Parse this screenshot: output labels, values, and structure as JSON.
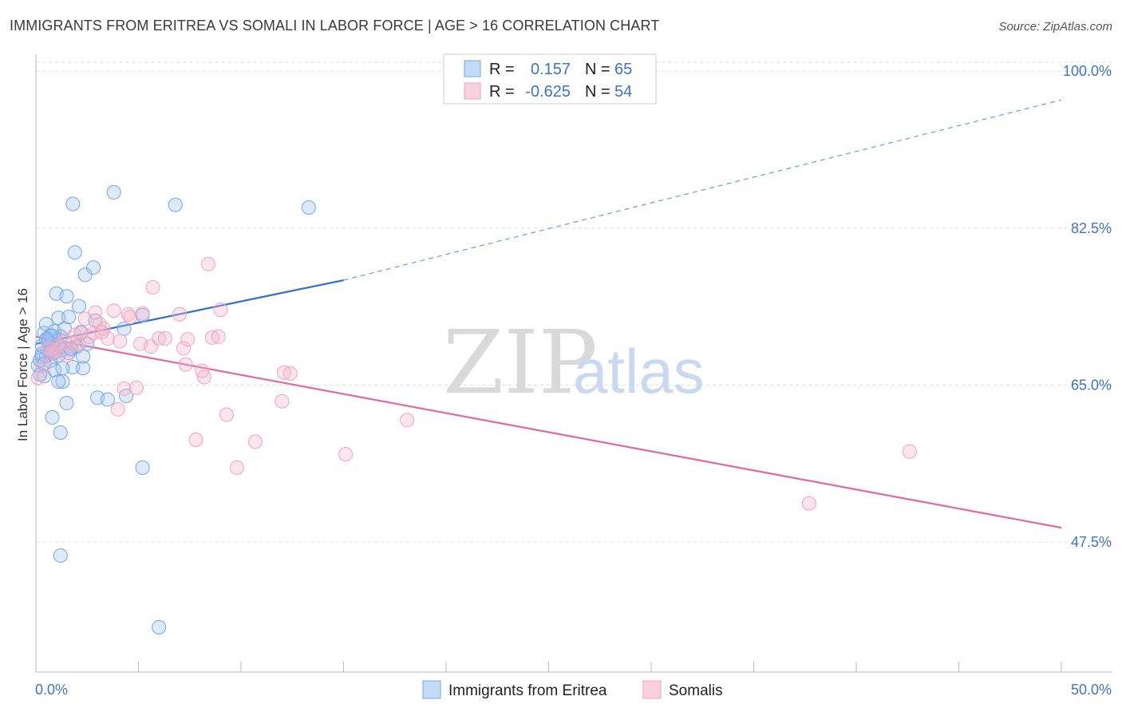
{
  "header": {
    "title": "IMMIGRANTS FROM ERITREA VS SOMALI IN LABOR FORCE | AGE > 16 CORRELATION CHART",
    "source": "Source: ZipAtlas.com"
  },
  "watermark": {
    "zip": "ZIP",
    "atlas": "atlas"
  },
  "legend": {
    "rows": [
      {
        "r_label": "R =",
        "r_value": "0.157",
        "n_label": "N =",
        "n_value": "65",
        "color": "#6fa8e8"
      },
      {
        "r_label": "R =",
        "r_value": "-0.625",
        "n_label": "N =",
        "n_value": "54",
        "color": "#f2a3bd"
      }
    ]
  },
  "bottom_legend": {
    "items": [
      {
        "label": "Immigrants from Eritrea",
        "color": "#6fa8e8"
      },
      {
        "label": "Somalis",
        "color": "#f2a3bd"
      }
    ]
  },
  "chart_data": {
    "type": "scatter",
    "title": "IMMIGRANTS FROM ERITREA VS SOMALI IN LABOR FORCE | AGE > 16 CORRELATION CHART",
    "xlabel": "",
    "ylabel": "In Labor Force | Age > 16",
    "xlim": [
      0,
      50
    ],
    "ylim": [
      33,
      101
    ],
    "x_tick_labels": [
      "0.0%",
      "50.0%"
    ],
    "y_ticks": [
      47.5,
      65.0,
      82.5,
      100.0
    ],
    "y_tick_labels": [
      "47.5%",
      "65.0%",
      "82.5%",
      "100.0%"
    ],
    "grid": true,
    "series": [
      {
        "name": "Immigrants from Eritrea",
        "color": "#6fa8e8",
        "points": [
          [
            0.1,
            67.2
          ],
          [
            0.2,
            67.8
          ],
          [
            0.3,
            68.5
          ],
          [
            0.3,
            69.4
          ],
          [
            0.4,
            70.8
          ],
          [
            0.4,
            66.0
          ],
          [
            0.5,
            71.8
          ],
          [
            0.5,
            68.2
          ],
          [
            0.6,
            70.2
          ],
          [
            0.6,
            69.0
          ],
          [
            0.7,
            68.8
          ],
          [
            0.7,
            67.7
          ],
          [
            0.8,
            70.5
          ],
          [
            0.8,
            69.6
          ],
          [
            0.9,
            71.0
          ],
          [
            0.9,
            68.6
          ],
          [
            1.0,
            69.9
          ],
          [
            1.0,
            75.2
          ],
          [
            1.1,
            72.5
          ],
          [
            1.1,
            68.3
          ],
          [
            1.2,
            69.3
          ],
          [
            1.2,
            70.4
          ],
          [
            1.3,
            65.4
          ],
          [
            1.3,
            68.9
          ],
          [
            1.4,
            71.3
          ],
          [
            1.5,
            74.9
          ],
          [
            1.5,
            63.0
          ],
          [
            1.6,
            72.6
          ],
          [
            1.7,
            69.0
          ],
          [
            1.8,
            67.0
          ],
          [
            1.8,
            85.2
          ],
          [
            1.9,
            79.8
          ],
          [
            2.0,
            69.3
          ],
          [
            2.1,
            73.8
          ],
          [
            2.2,
            70.9
          ],
          [
            2.3,
            66.9
          ],
          [
            2.3,
            68.2
          ],
          [
            2.4,
            77.3
          ],
          [
            2.5,
            69.6
          ],
          [
            2.8,
            78.1
          ],
          [
            2.9,
            72.2
          ],
          [
            3.0,
            63.6
          ],
          [
            3.5,
            63.4
          ],
          [
            3.8,
            86.5
          ],
          [
            4.3,
            71.3
          ],
          [
            4.4,
            63.8
          ],
          [
            5.2,
            72.8
          ],
          [
            5.2,
            55.8
          ],
          [
            6.0,
            38.0
          ],
          [
            6.8,
            85.1
          ],
          [
            13.3,
            84.8
          ],
          [
            1.6,
            68.6
          ],
          [
            1.7,
            69.1
          ],
          [
            0.9,
            66.7
          ],
          [
            1.2,
            59.7
          ],
          [
            1.1,
            65.4
          ],
          [
            0.8,
            61.4
          ],
          [
            1.2,
            46.0
          ],
          [
            0.6,
            69.9
          ],
          [
            0.7,
            70.5
          ],
          [
            0.5,
            70.1
          ],
          [
            0.3,
            68.2
          ],
          [
            0.2,
            66.2
          ],
          [
            1.3,
            66.9
          ],
          [
            0.4,
            67.4
          ]
        ]
      },
      {
        "name": "Somalis",
        "color": "#f2a3bd",
        "points": [
          [
            0.1,
            65.8
          ],
          [
            0.4,
            67.2
          ],
          [
            0.6,
            69.1
          ],
          [
            0.9,
            68.8
          ],
          [
            1.1,
            69.4
          ],
          [
            1.4,
            70.0
          ],
          [
            1.8,
            69.7
          ],
          [
            1.9,
            70.6
          ],
          [
            2.1,
            69.5
          ],
          [
            2.4,
            72.4
          ],
          [
            2.6,
            70.4
          ],
          [
            2.8,
            70.8
          ],
          [
            3.1,
            71.8
          ],
          [
            3.3,
            71.3
          ],
          [
            3.5,
            70.2
          ],
          [
            3.8,
            73.3
          ],
          [
            4.0,
            62.3
          ],
          [
            4.1,
            69.9
          ],
          [
            4.3,
            64.6
          ],
          [
            4.5,
            72.9
          ],
          [
            4.6,
            72.6
          ],
          [
            4.9,
            64.7
          ],
          [
            5.1,
            69.6
          ],
          [
            5.2,
            73.0
          ],
          [
            5.6,
            69.3
          ],
          [
            5.7,
            75.9
          ],
          [
            6.0,
            70.2
          ],
          [
            6.3,
            70.2
          ],
          [
            7.0,
            72.9
          ],
          [
            7.2,
            69.1
          ],
          [
            7.3,
            67.3
          ],
          [
            7.4,
            70.1
          ],
          [
            7.8,
            58.9
          ],
          [
            8.1,
            66.6
          ],
          [
            8.2,
            65.9
          ],
          [
            8.4,
            78.5
          ],
          [
            8.6,
            70.3
          ],
          [
            8.9,
            70.4
          ],
          [
            9.0,
            73.4
          ],
          [
            9.3,
            61.7
          ],
          [
            9.8,
            55.8
          ],
          [
            10.7,
            58.7
          ],
          [
            12.0,
            63.2
          ],
          [
            12.1,
            66.4
          ],
          [
            12.4,
            66.3
          ],
          [
            15.1,
            57.3
          ],
          [
            18.1,
            61.1
          ],
          [
            37.7,
            51.8
          ],
          [
            42.6,
            57.6
          ],
          [
            3.2,
            70.9
          ],
          [
            2.9,
            73.1
          ],
          [
            1.5,
            68.3
          ],
          [
            2.2,
            70.8
          ],
          [
            0.8,
            68.6
          ]
        ]
      }
    ],
    "trend_lines": [
      {
        "series": "Immigrants from Eritrea",
        "solid": [
          [
            0,
            69.6
          ],
          [
            15.0,
            76.7
          ]
        ],
        "dashed": [
          [
            15.0,
            76.7
          ],
          [
            50,
            96.8
          ]
        ]
      },
      {
        "series": "Somalis",
        "solid": [
          [
            0,
            70.4
          ],
          [
            50,
            49.1
          ]
        ]
      }
    ]
  }
}
